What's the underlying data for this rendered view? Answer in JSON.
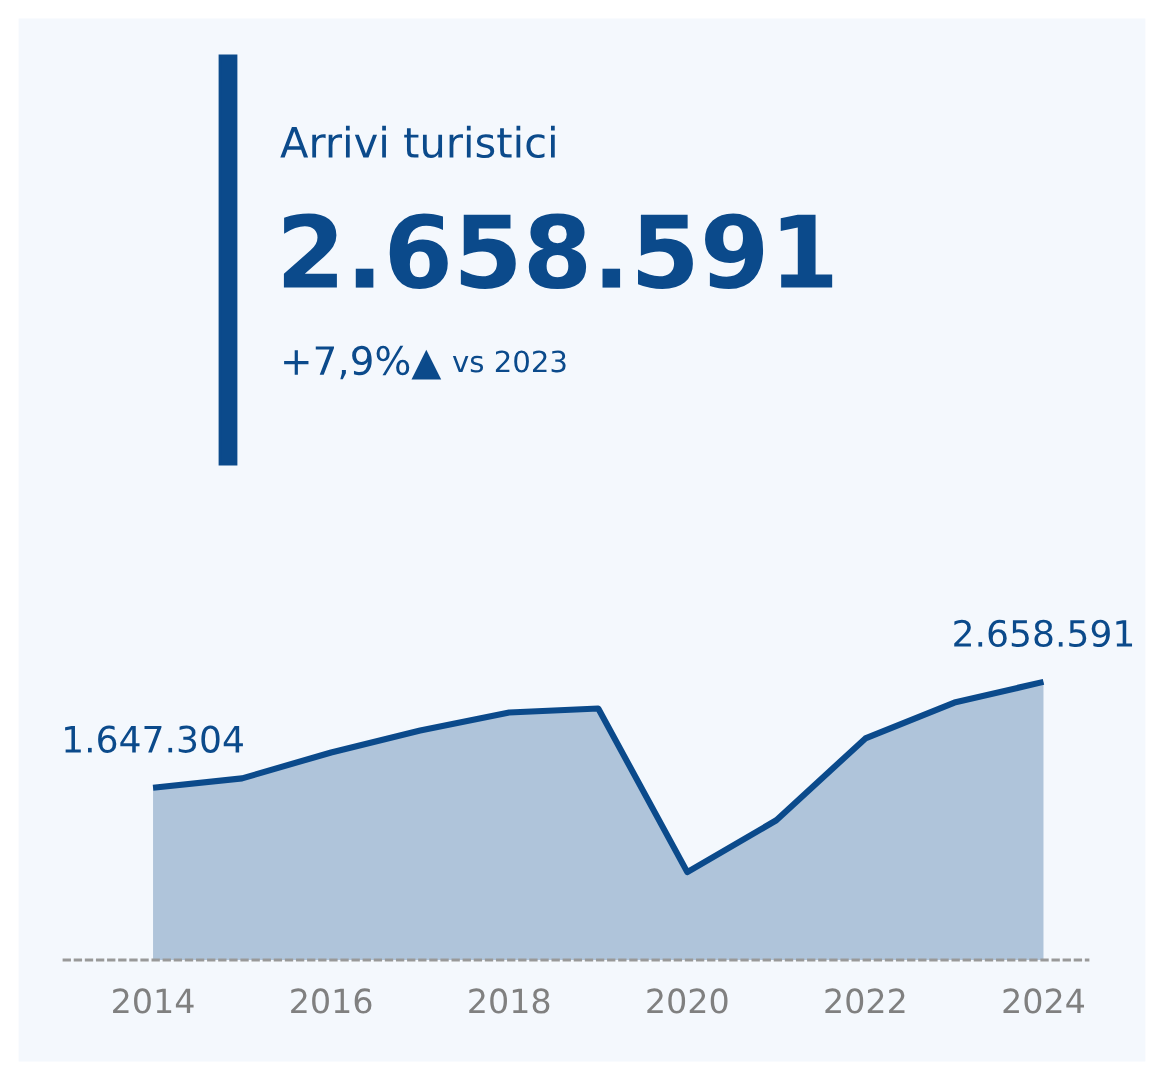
{
  "chart_data": {
    "type": "area",
    "title": "Arrivi turistici",
    "subtitle": "2.658.591",
    "annotations": [
      "+7,9%▲",
      "vs 2023"
    ],
    "x": [
      2014,
      2015,
      2016,
      2017,
      2018,
      2019,
      2020,
      2021,
      2022,
      2023,
      2024
    ],
    "series": [
      {
        "color": "#0b4a8b",
        "values": [
          1647304,
          1736000,
          1984000,
          2194000,
          2366000,
          2404000,
          840000,
          1336000,
          2118000,
          2461000,
          2658591
        ],
        "value_labels": [
          "1.647.304",
          null,
          null,
          null,
          null,
          null,
          null,
          null,
          null,
          null,
          "2.658.591"
        ]
      }
    ],
    "xlim": [
      2013,
      2024.5
    ],
    "xticks": [
      2014,
      2016,
      2018,
      2020,
      2022,
      2024
    ],
    "tick_labels": "x",
    "grid": false,
    "legend": false
  }
}
